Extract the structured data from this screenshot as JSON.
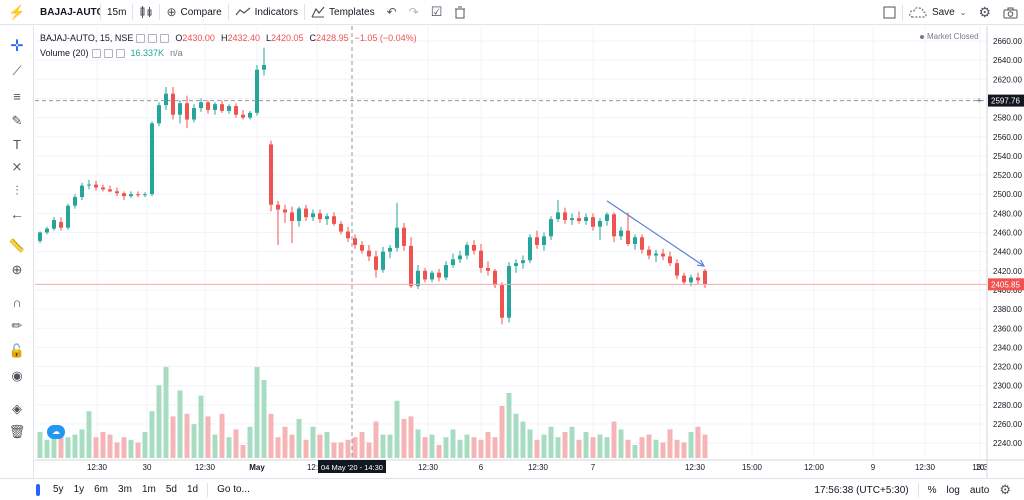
{
  "topbar": {
    "symbol": "BAJAJ-AUTO",
    "interval": "15m",
    "compare_label": "Compare",
    "indicators_label": "Indicators",
    "templates_label": "Templates",
    "save_label": "Save"
  },
  "legend": {
    "symbol_line": "BAJAJ-AUTO, 15, NSE",
    "o_label": "O",
    "o_value": "2430.00",
    "h_label": "H",
    "h_value": "2432.40",
    "l_label": "L",
    "l_value": "2420.05",
    "c_label": "C",
    "c_value": "2428.95",
    "change": "−1.05 (−0.04%)",
    "volume_label": "Volume (20)",
    "volume_value": "16.337K",
    "volume_ma": "n/a"
  },
  "market_status": "Market Closed",
  "crosshair_price_label": "2597.76",
  "crosshair_time_label": "04 May '20 - 14:30",
  "last_price_label": "2405.85",
  "bottombar": {
    "ranges": [
      "5y",
      "1y",
      "6m",
      "3m",
      "1m",
      "5d",
      "1d"
    ],
    "goto_label": "Go to...",
    "clock": "17:56:38 (UTC+5:30)",
    "percent_label": "%",
    "log_label": "log",
    "auto_label": "auto"
  },
  "colors": {
    "up": "#26a69a",
    "down": "#ef5350",
    "up_volume": "#a8dcc2",
    "down_volume": "#f5b4b6",
    "trendline": "#5b7fd6",
    "accent": "#2962ff"
  },
  "chart_data": {
    "type": "candlestick",
    "price_axis": [
      "2660.00",
      "2640.00",
      "2620.00",
      "2600.00",
      "2580.00",
      "2560.00",
      "2540.00",
      "2520.00",
      "2500.00",
      "2480.00",
      "2460.00",
      "2440.00",
      "2420.00",
      "2400.00",
      "2380.00",
      "2360.00",
      "2340.00",
      "2320.00",
      "2300.00",
      "2280.00",
      "2260.00",
      "2240.00"
    ],
    "time_axis": [
      "12:30",
      "30",
      "12:30",
      "May",
      "12:30",
      "12:30",
      "6",
      "12:30",
      "7",
      "12:30",
      "15:00",
      "12:00",
      "9",
      "12:30",
      "10",
      "13:3"
    ],
    "ylim": [
      2230,
      2665
    ],
    "crosshair_price": 2597.76,
    "last_price": 2405.85,
    "trendline": {
      "from": {
        "bar": 81,
        "price": 2493
      },
      "to": {
        "bar": 94,
        "price": 2425
      }
    },
    "candles": [
      {
        "o": 2451,
        "h": 2461,
        "l": 2449,
        "c": 2460
      },
      {
        "o": 2460,
        "h": 2466,
        "l": 2458,
        "c": 2464
      },
      {
        "o": 2464,
        "h": 2476,
        "l": 2462,
        "c": 2473
      },
      {
        "o": 2471,
        "h": 2476,
        "l": 2462,
        "c": 2465
      },
      {
        "o": 2465,
        "h": 2490,
        "l": 2463,
        "c": 2488
      },
      {
        "o": 2488,
        "h": 2500,
        "l": 2485,
        "c": 2497
      },
      {
        "o": 2497,
        "h": 2512,
        "l": 2494,
        "c": 2509
      },
      {
        "o": 2509,
        "h": 2515,
        "l": 2505,
        "c": 2510
      },
      {
        "o": 2510,
        "h": 2514,
        "l": 2504,
        "c": 2507
      },
      {
        "o": 2507,
        "h": 2510,
        "l": 2503,
        "c": 2505
      },
      {
        "o": 2505,
        "h": 2509,
        "l": 2502,
        "c": 2503
      },
      {
        "o": 2503,
        "h": 2507,
        "l": 2498,
        "c": 2501
      },
      {
        "o": 2501,
        "h": 2503,
        "l": 2494,
        "c": 2498
      },
      {
        "o": 2498,
        "h": 2503,
        "l": 2496,
        "c": 2500
      },
      {
        "o": 2500,
        "h": 2503,
        "l": 2497,
        "c": 2499
      },
      {
        "o": 2499,
        "h": 2502,
        "l": 2497,
        "c": 2500
      },
      {
        "o": 2500,
        "h": 2576,
        "l": 2498,
        "c": 2574
      },
      {
        "o": 2574,
        "h": 2596,
        "l": 2571,
        "c": 2593
      },
      {
        "o": 2593,
        "h": 2612,
        "l": 2588,
        "c": 2605
      },
      {
        "o": 2605,
        "h": 2612,
        "l": 2578,
        "c": 2583
      },
      {
        "o": 2583,
        "h": 2598,
        "l": 2574,
        "c": 2595
      },
      {
        "o": 2595,
        "h": 2603,
        "l": 2569,
        "c": 2578
      },
      {
        "o": 2578,
        "h": 2594,
        "l": 2575,
        "c": 2590
      },
      {
        "o": 2590,
        "h": 2600,
        "l": 2586,
        "c": 2596
      },
      {
        "o": 2596,
        "h": 2598,
        "l": 2584,
        "c": 2588
      },
      {
        "o": 2588,
        "h": 2596,
        "l": 2583,
        "c": 2594
      },
      {
        "o": 2594,
        "h": 2598,
        "l": 2585,
        "c": 2587
      },
      {
        "o": 2587,
        "h": 2594,
        "l": 2584,
        "c": 2592
      },
      {
        "o": 2592,
        "h": 2595,
        "l": 2580,
        "c": 2583
      },
      {
        "o": 2583,
        "h": 2588,
        "l": 2578,
        "c": 2580
      },
      {
        "o": 2580,
        "h": 2587,
        "l": 2578,
        "c": 2585
      },
      {
        "o": 2585,
        "h": 2635,
        "l": 2582,
        "c": 2630
      },
      {
        "o": 2630,
        "h": 2653,
        "l": 2624,
        "c": 2635
      },
      {
        "o": 2552,
        "h": 2556,
        "l": 2482,
        "c": 2489
      },
      {
        "o": 2489,
        "h": 2493,
        "l": 2447,
        "c": 2484
      },
      {
        "o": 2484,
        "h": 2489,
        "l": 2470,
        "c": 2481
      },
      {
        "o": 2481,
        "h": 2487,
        "l": 2449,
        "c": 2472
      },
      {
        "o": 2472,
        "h": 2487,
        "l": 2466,
        "c": 2485
      },
      {
        "o": 2485,
        "h": 2489,
        "l": 2472,
        "c": 2476
      },
      {
        "o": 2476,
        "h": 2484,
        "l": 2472,
        "c": 2480
      },
      {
        "o": 2480,
        "h": 2484,
        "l": 2470,
        "c": 2474
      },
      {
        "o": 2474,
        "h": 2480,
        "l": 2468,
        "c": 2477
      },
      {
        "o": 2477,
        "h": 2481,
        "l": 2467,
        "c": 2469
      },
      {
        "o": 2469,
        "h": 2472,
        "l": 2458,
        "c": 2461
      },
      {
        "o": 2461,
        "h": 2466,
        "l": 2450,
        "c": 2454
      },
      {
        "o": 2454,
        "h": 2458,
        "l": 2443,
        "c": 2447
      },
      {
        "o": 2447,
        "h": 2451,
        "l": 2438,
        "c": 2441
      },
      {
        "o": 2441,
        "h": 2447,
        "l": 2430,
        "c": 2435
      },
      {
        "o": 2435,
        "h": 2441,
        "l": 2413,
        "c": 2421
      },
      {
        "o": 2421,
        "h": 2445,
        "l": 2418,
        "c": 2440
      },
      {
        "o": 2440,
        "h": 2447,
        "l": 2433,
        "c": 2444
      },
      {
        "o": 2444,
        "h": 2491,
        "l": 2440,
        "c": 2465
      },
      {
        "o": 2465,
        "h": 2470,
        "l": 2441,
        "c": 2446
      },
      {
        "o": 2446,
        "h": 2455,
        "l": 2402,
        "c": 2404
      },
      {
        "o": 2404,
        "h": 2426,
        "l": 2401,
        "c": 2420
      },
      {
        "o": 2420,
        "h": 2423,
        "l": 2408,
        "c": 2411
      },
      {
        "o": 2411,
        "h": 2420,
        "l": 2408,
        "c": 2418
      },
      {
        "o": 2418,
        "h": 2422,
        "l": 2409,
        "c": 2413
      },
      {
        "o": 2413,
        "h": 2430,
        "l": 2410,
        "c": 2426
      },
      {
        "o": 2426,
        "h": 2438,
        "l": 2423,
        "c": 2432
      },
      {
        "o": 2432,
        "h": 2441,
        "l": 2428,
        "c": 2436
      },
      {
        "o": 2436,
        "h": 2450,
        "l": 2432,
        "c": 2447
      },
      {
        "o": 2447,
        "h": 2452,
        "l": 2437,
        "c": 2441
      },
      {
        "o": 2441,
        "h": 2448,
        "l": 2418,
        "c": 2423
      },
      {
        "o": 2423,
        "h": 2430,
        "l": 2415,
        "c": 2420
      },
      {
        "o": 2420,
        "h": 2422,
        "l": 2402,
        "c": 2405
      },
      {
        "o": 2405,
        "h": 2408,
        "l": 2364,
        "c": 2371
      },
      {
        "o": 2371,
        "h": 2429,
        "l": 2366,
        "c": 2425
      },
      {
        "o": 2425,
        "h": 2432,
        "l": 2418,
        "c": 2428
      },
      {
        "o": 2428,
        "h": 2436,
        "l": 2422,
        "c": 2431
      },
      {
        "o": 2431,
        "h": 2458,
        "l": 2428,
        "c": 2455
      },
      {
        "o": 2455,
        "h": 2462,
        "l": 2443,
        "c": 2447
      },
      {
        "o": 2447,
        "h": 2460,
        "l": 2441,
        "c": 2456
      },
      {
        "o": 2456,
        "h": 2477,
        "l": 2452,
        "c": 2474
      },
      {
        "o": 2474,
        "h": 2494,
        "l": 2471,
        "c": 2481
      },
      {
        "o": 2481,
        "h": 2486,
        "l": 2469,
        "c": 2473
      },
      {
        "o": 2473,
        "h": 2480,
        "l": 2468,
        "c": 2475
      },
      {
        "o": 2475,
        "h": 2482,
        "l": 2469,
        "c": 2472
      },
      {
        "o": 2472,
        "h": 2480,
        "l": 2468,
        "c": 2476
      },
      {
        "o": 2476,
        "h": 2480,
        "l": 2462,
        "c": 2466
      },
      {
        "o": 2466,
        "h": 2475,
        "l": 2452,
        "c": 2472
      },
      {
        "o": 2472,
        "h": 2481,
        "l": 2467,
        "c": 2479
      },
      {
        "o": 2479,
        "h": 2481,
        "l": 2450,
        "c": 2456
      },
      {
        "o": 2456,
        "h": 2466,
        "l": 2452,
        "c": 2462
      },
      {
        "o": 2462,
        "h": 2481,
        "l": 2446,
        "c": 2448
      },
      {
        "o": 2448,
        "h": 2458,
        "l": 2442,
        "c": 2455
      },
      {
        "o": 2455,
        "h": 2458,
        "l": 2438,
        "c": 2442
      },
      {
        "o": 2442,
        "h": 2446,
        "l": 2432,
        "c": 2436
      },
      {
        "o": 2436,
        "h": 2442,
        "l": 2429,
        "c": 2438
      },
      {
        "o": 2438,
        "h": 2443,
        "l": 2431,
        "c": 2435
      },
      {
        "o": 2435,
        "h": 2440,
        "l": 2425,
        "c": 2428
      },
      {
        "o": 2428,
        "h": 2432,
        "l": 2411,
        "c": 2415
      },
      {
        "o": 2415,
        "h": 2418,
        "l": 2405,
        "c": 2408
      },
      {
        "o": 2408,
        "h": 2416,
        "l": 2404,
        "c": 2413
      },
      {
        "o": 2413,
        "h": 2418,
        "l": 2406,
        "c": 2410
      },
      {
        "o": 2420,
        "h": 2422,
        "l": 2402,
        "c": 2406
      }
    ],
    "volume": [
      10,
      7,
      9,
      12,
      8,
      9,
      11,
      18,
      8,
      10,
      9,
      6,
      8,
      7,
      6,
      10,
      18,
      28,
      35,
      16,
      26,
      17,
      13,
      24,
      16,
      9,
      17,
      8,
      11,
      5,
      12,
      35,
      30,
      17,
      8,
      12,
      9,
      15,
      7,
      12,
      9,
      10,
      6,
      6,
      7,
      8,
      10,
      6,
      14,
      9,
      9,
      22,
      15,
      16,
      11,
      8,
      9,
      5,
      8,
      11,
      7,
      9,
      8,
      7,
      10,
      8,
      20,
      25,
      17,
      14,
      11,
      7,
      9,
      12,
      8,
      10,
      12,
      7,
      10,
      8,
      9,
      8,
      14,
      11,
      7,
      5,
      8,
      9,
      7,
      6,
      11,
      7,
      6,
      10,
      12,
      9
    ]
  }
}
